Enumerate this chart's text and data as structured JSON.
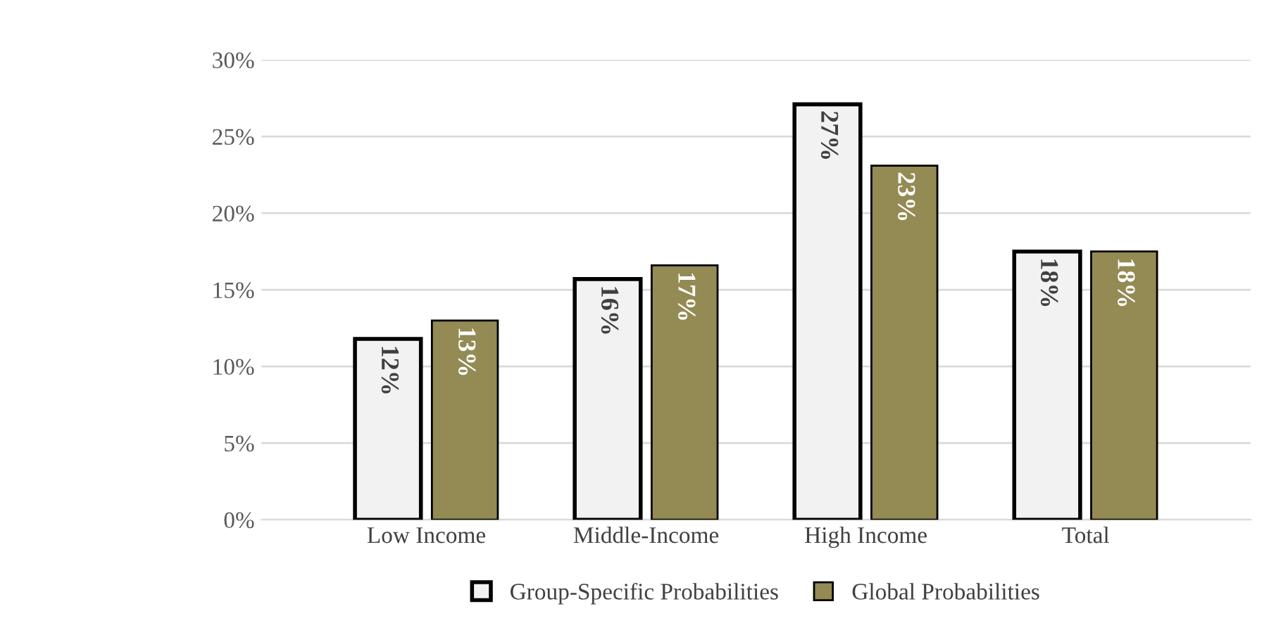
{
  "chart_data": {
    "type": "bar",
    "categories": [
      "Low Income",
      "Middle-Income",
      "High Income",
      "Total"
    ],
    "series": [
      {
        "name": "Group-Specific Probabilities",
        "color": "#f2f2f2",
        "values": [
          11.8,
          15.7,
          27.1,
          17.5
        ],
        "value_labels": [
          "12%",
          "16%",
          "27%",
          "18%"
        ]
      },
      {
        "name": "Global Probabilities",
        "color": "#948a54",
        "values": [
          13.0,
          16.6,
          23.1,
          17.5
        ],
        "value_labels": [
          "13%",
          "17%",
          "23%",
          "18%"
        ]
      }
    ],
    "ylim": [
      0,
      30
    ],
    "yticks": [
      {
        "value": 0,
        "label": "0%"
      },
      {
        "value": 5,
        "label": "5%"
      },
      {
        "value": 10,
        "label": "10%"
      },
      {
        "value": 15,
        "label": "15%"
      },
      {
        "value": 20,
        "label": "20%"
      },
      {
        "value": 25,
        "label": "25%"
      },
      {
        "value": 30,
        "label": "30%"
      }
    ],
    "grid": "y",
    "legend": "bottom"
  }
}
